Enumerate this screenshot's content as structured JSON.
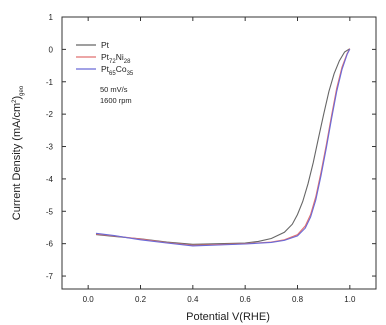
{
  "chart_data": {
    "type": "line",
    "xlabel": "Potential V(RHE)",
    "ylabel": {
      "main": "Current Density (mA/cm",
      "sup": "2",
      "close": ")",
      "sub": "geo"
    },
    "xlim": [
      -0.1,
      1.1
    ],
    "ylim": [
      -7.4,
      1.0
    ],
    "xticks": [
      "0.0",
      "0.2",
      "0.4",
      "0.6",
      "0.8",
      "1.0"
    ],
    "xtick_values": [
      0.0,
      0.2,
      0.4,
      0.6,
      0.8,
      1.0
    ],
    "yticks": [
      "1",
      "0",
      "-1",
      "-2",
      "-3",
      "-4",
      "-5",
      "-6",
      "-7"
    ],
    "ytick_values": [
      1,
      0,
      -1,
      -2,
      -3,
      -4,
      -5,
      -6,
      -7
    ],
    "legend_position": "top-left",
    "annotations": [
      "50 mV/s",
      "1600 rpm"
    ],
    "series": [
      {
        "name": "Pt",
        "legend": {
          "main": "Pt",
          "parts": []
        },
        "color": "#666666",
        "points": [
          [
            0.03,
            -5.72
          ],
          [
            0.1,
            -5.78
          ],
          [
            0.2,
            -5.85
          ],
          [
            0.3,
            -5.95
          ],
          [
            0.4,
            -6.02
          ],
          [
            0.5,
            -6.0
          ],
          [
            0.6,
            -5.98
          ],
          [
            0.65,
            -5.93
          ],
          [
            0.7,
            -5.84
          ],
          [
            0.75,
            -5.65
          ],
          [
            0.78,
            -5.4
          ],
          [
            0.8,
            -5.1
          ],
          [
            0.82,
            -4.7
          ],
          [
            0.84,
            -4.15
          ],
          [
            0.86,
            -3.5
          ],
          [
            0.88,
            -2.75
          ],
          [
            0.9,
            -2.0
          ],
          [
            0.92,
            -1.3
          ],
          [
            0.94,
            -0.75
          ],
          [
            0.96,
            -0.35
          ],
          [
            0.98,
            -0.08
          ],
          [
            1.0,
            0.02
          ]
        ]
      },
      {
        "name": "Pt72Ni28",
        "legend": {
          "main": "Pt",
          "parts": [
            [
              "sub",
              "72"
            ],
            [
              "main",
              "Ni"
            ],
            [
              "sub",
              "28"
            ]
          ]
        },
        "color": "#e07070",
        "points": [
          [
            0.03,
            -5.7
          ],
          [
            0.1,
            -5.76
          ],
          [
            0.2,
            -5.86
          ],
          [
            0.3,
            -5.97
          ],
          [
            0.4,
            -6.05
          ],
          [
            0.5,
            -6.03
          ],
          [
            0.6,
            -6.0
          ],
          [
            0.7,
            -5.95
          ],
          [
            0.75,
            -5.88
          ],
          [
            0.8,
            -5.72
          ],
          [
            0.83,
            -5.45
          ],
          [
            0.85,
            -5.1
          ],
          [
            0.87,
            -4.55
          ],
          [
            0.89,
            -3.8
          ],
          [
            0.91,
            -2.95
          ],
          [
            0.93,
            -2.05
          ],
          [
            0.95,
            -1.2
          ],
          [
            0.97,
            -0.55
          ],
          [
            0.99,
            -0.12
          ],
          [
            1.0,
            0.02
          ]
        ]
      },
      {
        "name": "Pt65Co35",
        "legend": {
          "main": "Pt",
          "parts": [
            [
              "sub",
              "65"
            ],
            [
              "main",
              "Co"
            ],
            [
              "sub",
              "35"
            ]
          ]
        },
        "color": "#6a6ad8",
        "points": [
          [
            0.03,
            -5.68
          ],
          [
            0.1,
            -5.75
          ],
          [
            0.2,
            -5.88
          ],
          [
            0.3,
            -5.98
          ],
          [
            0.4,
            -6.07
          ],
          [
            0.5,
            -6.04
          ],
          [
            0.6,
            -6.01
          ],
          [
            0.7,
            -5.96
          ],
          [
            0.75,
            -5.9
          ],
          [
            0.8,
            -5.76
          ],
          [
            0.83,
            -5.52
          ],
          [
            0.85,
            -5.18
          ],
          [
            0.87,
            -4.65
          ],
          [
            0.89,
            -3.9
          ],
          [
            0.91,
            -3.05
          ],
          [
            0.93,
            -2.15
          ],
          [
            0.95,
            -1.3
          ],
          [
            0.97,
            -0.62
          ],
          [
            0.99,
            -0.15
          ],
          [
            1.0,
            0.01
          ]
        ]
      }
    ]
  }
}
